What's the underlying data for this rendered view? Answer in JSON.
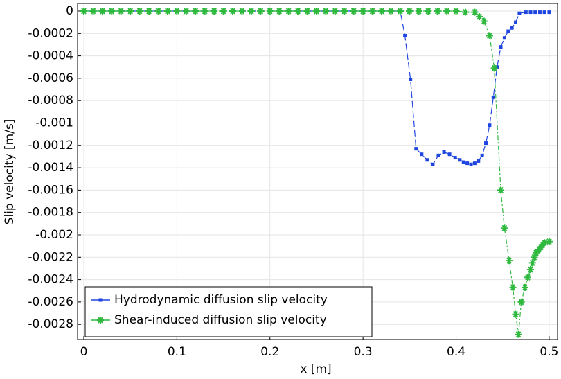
{
  "chart_data": {
    "type": "line",
    "xlabel": "x [m]",
    "ylabel": "Slip velocity [m/s]",
    "xlim": [
      -0.0067,
      0.509
    ],
    "ylim": [
      -0.002935,
      6.8e-05
    ],
    "xticks": [
      0,
      0.1,
      0.2,
      0.3,
      0.4,
      0.5
    ],
    "yticks": [
      0,
      -0.0002,
      -0.0004,
      -0.0006,
      -0.0008,
      -0.001,
      -0.0012,
      -0.0014,
      -0.0016,
      -0.0018,
      -0.002,
      -0.0022,
      -0.0024,
      -0.0026,
      -0.0028
    ],
    "grid": true,
    "legend": "lower left",
    "series": [
      {
        "name": "Hydrodynamic diffusion slip velocity",
        "color": "#1f45e0",
        "marker": "square",
        "dash": "long-dash",
        "x": [
          0,
          0.01,
          0.02,
          0.03,
          0.04,
          0.05,
          0.06,
          0.07,
          0.08,
          0.09,
          0.1,
          0.11,
          0.12,
          0.13,
          0.14,
          0.15,
          0.16,
          0.17,
          0.18,
          0.19,
          0.2,
          0.21,
          0.22,
          0.23,
          0.24,
          0.25,
          0.26,
          0.27,
          0.28,
          0.29,
          0.3,
          0.31,
          0.32,
          0.33,
          0.34,
          0.345,
          0.351,
          0.357,
          0.363,
          0.369,
          0.375,
          0.381,
          0.387,
          0.393,
          0.399,
          0.404,
          0.408,
          0.412,
          0.416,
          0.42,
          0.424,
          0.428,
          0.432,
          0.436,
          0.44,
          0.444,
          0.448,
          0.452,
          0.456,
          0.46,
          0.464,
          0.468,
          0.475,
          0.48,
          0.485,
          0.49,
          0.495,
          0.5
        ],
        "values": [
          0,
          0,
          0,
          0,
          0,
          0,
          0,
          0,
          0,
          0,
          0,
          0,
          0,
          0,
          0,
          0,
          0,
          0,
          0,
          0,
          0,
          0,
          0,
          0,
          0,
          0,
          0,
          0,
          0,
          0,
          0,
          0,
          0,
          0,
          0,
          -0.00022,
          -0.00061,
          -0.00123,
          -0.00128,
          -0.00133,
          -0.00137,
          -0.00129,
          -0.00126,
          -0.00128,
          -0.00131,
          -0.00133,
          -0.00135,
          -0.00136,
          -0.00137,
          -0.00136,
          -0.00134,
          -0.00129,
          -0.00118,
          -0.00102,
          -0.00077,
          -0.0005,
          -0.00032,
          -0.00024,
          -0.00018,
          -0.00015,
          -0.0001,
          -2e-05,
          -1e-05,
          -1e-05,
          -1e-05,
          -1e-05,
          -1e-05,
          -1e-05
        ]
      },
      {
        "name": "Shear-induced diffusion slip velocity",
        "color": "#2fb93f",
        "marker": "asterisk",
        "dash": "dash-dot",
        "x": [
          0,
          0.01,
          0.02,
          0.03,
          0.04,
          0.05,
          0.06,
          0.07,
          0.08,
          0.09,
          0.1,
          0.11,
          0.12,
          0.13,
          0.14,
          0.15,
          0.16,
          0.17,
          0.18,
          0.19,
          0.2,
          0.21,
          0.22,
          0.23,
          0.24,
          0.25,
          0.26,
          0.27,
          0.28,
          0.29,
          0.3,
          0.31,
          0.32,
          0.33,
          0.34,
          0.35,
          0.36,
          0.37,
          0.38,
          0.39,
          0.4,
          0.41,
          0.42,
          0.425,
          0.43,
          0.436,
          0.441,
          0.448,
          0.452,
          0.457,
          0.461,
          0.464,
          0.467,
          0.47,
          0.474,
          0.477,
          0.48,
          0.482,
          0.484,
          0.486,
          0.489,
          0.491,
          0.493,
          0.495,
          0.5
        ],
        "values": [
          0,
          0,
          0,
          0,
          0,
          0,
          0,
          0,
          0,
          0,
          0,
          0,
          0,
          0,
          0,
          0,
          0,
          0,
          0,
          0,
          0,
          0,
          0,
          0,
          0,
          0,
          0,
          0,
          0,
          0,
          0,
          0,
          0,
          0,
          0,
          0,
          0,
          0,
          0,
          0,
          0,
          -1e-05,
          -1e-05,
          -5e-05,
          -9e-05,
          -0.00022,
          -0.00051,
          -0.0016,
          -0.00194,
          -0.00223,
          -0.00247,
          -0.00271,
          -0.00289,
          -0.0026,
          -0.00247,
          -0.00238,
          -0.00231,
          -0.00225,
          -0.0022,
          -0.00216,
          -0.00213,
          -0.00211,
          -0.00209,
          -0.00207,
          -0.00206
        ]
      }
    ]
  }
}
